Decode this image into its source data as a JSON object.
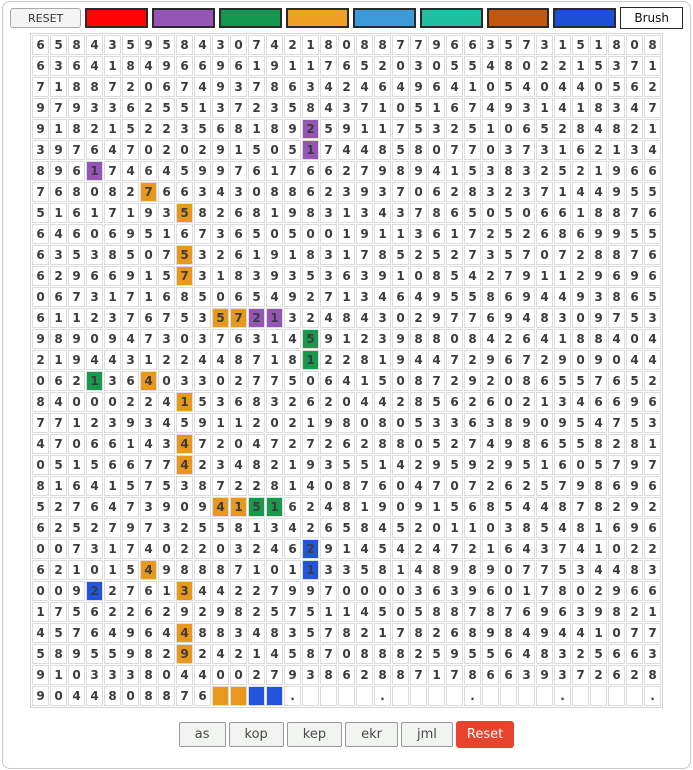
{
  "toolbar": {
    "reset_label": "RESET",
    "brush_label": "Brush",
    "colors": [
      {
        "name": "red",
        "hex": "#fe0404"
      },
      {
        "name": "purple",
        "hex": "#9455b5"
      },
      {
        "name": "green",
        "hex": "#14974e"
      },
      {
        "name": "orange",
        "hex": "#f0a125"
      },
      {
        "name": "lightblue",
        "hex": "#3d9ad8"
      },
      {
        "name": "teal",
        "hex": "#1fc0a1"
      },
      {
        "name": "rust",
        "hex": "#c4570e"
      },
      {
        "name": "blue",
        "hex": "#1d4ed8"
      }
    ]
  },
  "footer": {
    "buttons": [
      "as",
      "kop",
      "kep",
      "ekr",
      "jml"
    ],
    "reset_label": "Reset",
    "reset_color": "#e8432d"
  },
  "grid": {
    "columns": 35,
    "separator_columns": [
      5,
      10,
      15,
      20,
      25,
      30,
      35
    ],
    "band_rows": [
      2,
      7,
      12,
      17,
      22,
      27,
      32
    ],
    "band_color": "#e8e4e8",
    "empty_color": "#e3e3e3",
    "paint_colors": {
      "purple": "#9455b5",
      "orange": "#e8991d",
      "green": "#179a4b",
      "blue": "#2255dd"
    },
    "rows": [
      {
        "cells": "65843595843074218088779663573151808",
        "paint": {}
      },
      {
        "cells": "63641849669619117652030554802215371",
        "paint": {}
      },
      {
        "cells": "71887206749378634246496410540440562",
        "paint": {}
      },
      {
        "cells": "97933625513723584371051674931418347",
        "paint": {}
      },
      {
        "cells": "91821522356818925911753251065284821",
        "paint": {
          "16": "purple"
        }
      },
      {
        "cells": "39764702029150517448580770373162134",
        "paint": {
          "16": "purple"
        }
      },
      {
        "cells": "89617464599761766279894153832521966",
        "paint": {
          "4": "purple"
        }
      },
      {
        "cells": "76808276634308862393706283237144955",
        "paint": {
          "7": "orange"
        }
      },
      {
        "cells": "51617193582681983134378650506618876",
        "paint": {
          "9": "orange"
        }
      },
      {
        "cells": "64606951673650500191136172526869955",
        "paint": {}
      },
      {
        "cells": "63538507532619183178525273570728876",
        "paint": {
          "9": "orange"
        }
      },
      {
        "cells": "62966915731839353639108542791129696",
        "paint": {
          "9": "orange"
        }
      },
      {
        "cells": "06731716850654927134649558694493865",
        "paint": {}
      },
      {
        "cells": "61123767535721324843029776948309753",
        "paint": {
          "11": "orange",
          "12": "orange",
          "13": "purple",
          "14": "purple"
        }
      },
      {
        "cells": "98909473037631459123988084264188404",
        "paint": {
          "16": "green"
        }
      },
      {
        "cells": "21944312244871812281944729672909044",
        "paint": {
          "16": "green"
        }
      },
      {
        "cells": "06213640330277506415087292086557652",
        "paint": {
          "4": "green",
          "7": "orange"
        }
      },
      {
        "cells": "84000224153683262044285626021346696",
        "paint": {
          "9": "orange"
        }
      },
      {
        "cells": "77123934591120219808053363890954753",
        "paint": {}
      },
      {
        "cells": "47066143472047272628805274986558281",
        "paint": {
          "9": "orange"
        }
      },
      {
        "cells": "05156677423482193551429592951605797",
        "paint": {
          "9": "orange"
        }
      },
      {
        "cells": "81641575387228140876047072625798696",
        "paint": {}
      },
      {
        "cells": "52764739094151624819091568544878292",
        "paint": {
          "11": "orange",
          "12": "orange",
          "13": "green",
          "14": "green"
        }
      },
      {
        "cells": "62527973255813426584520110385481696",
        "paint": {}
      },
      {
        "cells": "00731740220324629145424721643741022",
        "paint": {
          "16": "blue"
        }
      },
      {
        "cells": "62101549888710113358148989077534483",
        "paint": {
          "7": "orange",
          "16": "blue"
        }
      },
      {
        "cells": "00922761344227997000036396017802966",
        "paint": {
          "4": "blue",
          "9": "orange"
        }
      },
      {
        "cells": "17562262929825751145058878769639821",
        "paint": {}
      },
      {
        "cells": "45764964488348357821782689849441077",
        "paint": {
          "9": "orange"
        }
      },
      {
        "cells": "58955982924214587088825955648325663",
        "paint": {
          "9": "orange"
        }
      },
      {
        "cells": "91033380440027938628871786639372628",
        "paint": {}
      },
      {
        "cells": "9044808876____.____.____.____.____.",
        "paint": {
          "11": "orange",
          "12": "orange",
          "13": "blue",
          "14": "blue"
        }
      }
    ]
  }
}
